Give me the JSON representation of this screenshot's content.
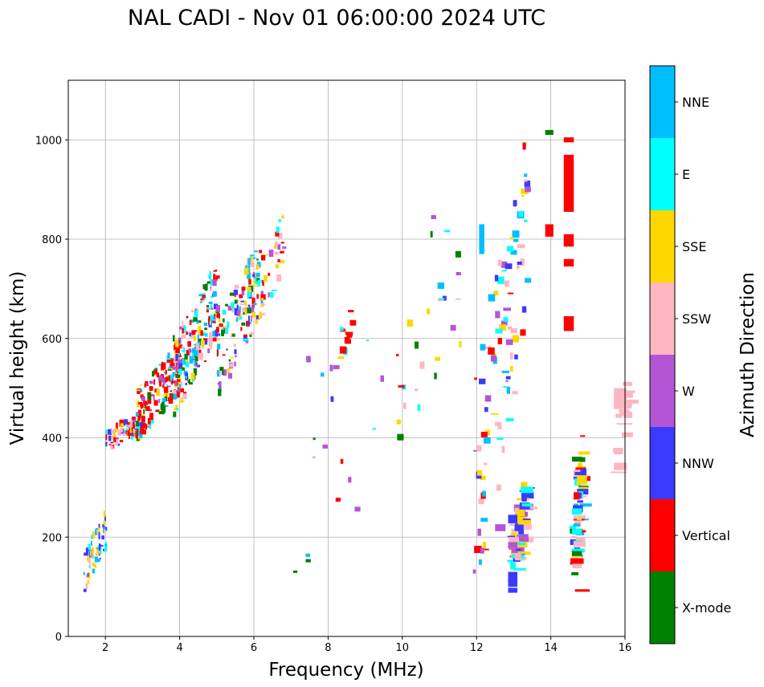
{
  "chart_data": {
    "type": "scatter",
    "title": "NAL CADI - Nov 01 06:00:00 2024 UTC",
    "xlabel": "Frequency (MHz)",
    "ylabel": "Virtual height (km)",
    "xlim": [
      1,
      16
    ],
    "ylim": [
      0,
      1120
    ],
    "xticks": [
      2,
      4,
      6,
      8,
      10,
      12,
      14,
      16
    ],
    "yticks": [
      0,
      200,
      400,
      600,
      800,
      1000
    ],
    "grid": true,
    "colorbar": {
      "label": "Azimuth Direction",
      "categories": [
        {
          "name": "X-mode",
          "color": "#008000"
        },
        {
          "name": "Vertical",
          "color": "#ff0000"
        },
        {
          "name": "NNW",
          "color": "#3a3aff"
        },
        {
          "name": "W",
          "color": "#b455d6"
        },
        {
          "name": "SSW",
          "color": "#ffb6c1"
        },
        {
          "name": "SSE",
          "color": "#ffd700"
        },
        {
          "name": "E",
          "color": "#00ffff"
        },
        {
          "name": "NNE",
          "color": "#00bfff"
        }
      ]
    },
    "bands": [
      {
        "x0": 1.4,
        "x1": 2.0,
        "y0": 90,
        "y1": 260,
        "n": 70,
        "cats": [
          6,
          7,
          2,
          5,
          4
        ],
        "seed": 1,
        "w": 0.07
      },
      {
        "x0": 2.0,
        "x1": 3.0,
        "y0": 370,
        "y1": 460,
        "n": 70,
        "cats": [
          1,
          1,
          1,
          6,
          3,
          2,
          5,
          4
        ],
        "seed": 2,
        "w": 0.1
      },
      {
        "x0": 2.8,
        "x1": 4.0,
        "y0": 390,
        "y1": 600,
        "n": 160,
        "cats": [
          1,
          1,
          1,
          1,
          6,
          3,
          7,
          5,
          0
        ],
        "seed": 3,
        "w": 0.1
      },
      {
        "x0": 3.8,
        "x1": 5.0,
        "y0": 440,
        "y1": 760,
        "n": 200,
        "cats": [
          1,
          1,
          6,
          3,
          0,
          5,
          7,
          4,
          2
        ],
        "seed": 4,
        "w": 0.1
      },
      {
        "x0": 5.0,
        "x1": 6.2,
        "y0": 480,
        "y1": 810,
        "n": 140,
        "cats": [
          6,
          4,
          5,
          3,
          0,
          1,
          7,
          2
        ],
        "seed": 5,
        "w": 0.1
      },
      {
        "x0": 6.0,
        "x1": 6.8,
        "y0": 620,
        "y1": 860,
        "n": 35,
        "cats": [
          5,
          1,
          3,
          6,
          4
        ],
        "seed": 6,
        "w": 0.12
      },
      {
        "x0": 8.3,
        "x1": 8.6,
        "y0": 540,
        "y1": 700,
        "n": 12,
        "cats": [
          1,
          1,
          1,
          6
        ],
        "seed": 7,
        "w": 0.2
      },
      {
        "x0": 11.9,
        "x1": 13.3,
        "y0": 90,
        "y1": 1010,
        "n": 90,
        "cats": [
          3,
          2,
          4,
          5,
          6,
          7,
          1
        ],
        "seed": 8,
        "w": 0.18
      },
      {
        "x0": 12.8,
        "x1": 13.3,
        "y0": 90,
        "y1": 330,
        "n": 60,
        "cats": [
          3,
          2,
          4,
          5,
          6
        ],
        "seed": 9,
        "w": 0.3
      },
      {
        "x0": 14.5,
        "x1": 14.8,
        "y0": 90,
        "y1": 440,
        "n": 55,
        "cats": [
          6,
          7,
          0,
          1,
          4,
          5,
          2
        ],
        "seed": 10,
        "w": 0.3
      },
      {
        "x0": 15.6,
        "x1": 16.0,
        "y0": 320,
        "y1": 530,
        "n": 16,
        "cats": [
          4,
          4,
          4
        ],
        "seed": 11,
        "w": 0.4
      },
      {
        "x0": 7.0,
        "x1": 11.6,
        "y0": 90,
        "y1": 980,
        "n": 45,
        "cats": [
          3,
          5,
          6,
          2,
          4,
          7,
          1,
          0
        ],
        "seed": 12,
        "w": 0.15
      }
    ],
    "blocks": [
      {
        "x": 14.35,
        "w": 0.27,
        "y0": 855,
        "y1": 970,
        "cat": 1
      },
      {
        "x": 14.35,
        "w": 0.27,
        "y0": 785,
        "y1": 810,
        "cat": 1
      },
      {
        "x": 14.35,
        "w": 0.27,
        "y0": 745,
        "y1": 760,
        "cat": 1
      },
      {
        "x": 14.35,
        "w": 0.27,
        "y0": 615,
        "y1": 645,
        "cat": 1
      },
      {
        "x": 14.35,
        "w": 0.27,
        "y0": 995,
        "y1": 1005,
        "cat": 1
      },
      {
        "x": 13.85,
        "w": 0.22,
        "y0": 805,
        "y1": 830,
        "cat": 1
      },
      {
        "x": 13.85,
        "w": 0.22,
        "y0": 1010,
        "y1": 1020,
        "cat": 0
      },
      {
        "x": 12.07,
        "w": 0.14,
        "y0": 770,
        "y1": 830,
        "cat": 7
      },
      {
        "x": 12.85,
        "w": 0.25,
        "y0": 100,
        "y1": 130,
        "cat": 2
      },
      {
        "x": 12.85,
        "w": 0.25,
        "y0": 88,
        "y1": 98,
        "cat": 2
      },
      {
        "x": 12.85,
        "w": 0.25,
        "y0": 178,
        "y1": 190,
        "cat": 3
      },
      {
        "x": 12.85,
        "w": 0.25,
        "y0": 228,
        "y1": 245,
        "cat": 2
      },
      {
        "x": 12.5,
        "w": 0.28,
        "y0": 212,
        "y1": 226,
        "cat": 3
      },
      {
        "x": 14.57,
        "w": 0.27,
        "y0": 162,
        "y1": 172,
        "cat": 0
      },
      {
        "x": 14.57,
        "w": 0.27,
        "y0": 352,
        "y1": 362,
        "cat": 0
      },
      {
        "x": 14.57,
        "w": 0.27,
        "y0": 205,
        "y1": 217,
        "cat": 6
      },
      {
        "x": 14.57,
        "w": 0.27,
        "y0": 245,
        "y1": 258,
        "cat": 6
      },
      {
        "x": 14.65,
        "w": 0.4,
        "y0": 90,
        "y1": 95,
        "cat": 1
      },
      {
        "x": 15.7,
        "w": 0.35,
        "y0": 458,
        "y1": 500,
        "cat": 4
      },
      {
        "x": 15.7,
        "w": 0.35,
        "y0": 335,
        "y1": 350,
        "cat": 4
      }
    ]
  }
}
